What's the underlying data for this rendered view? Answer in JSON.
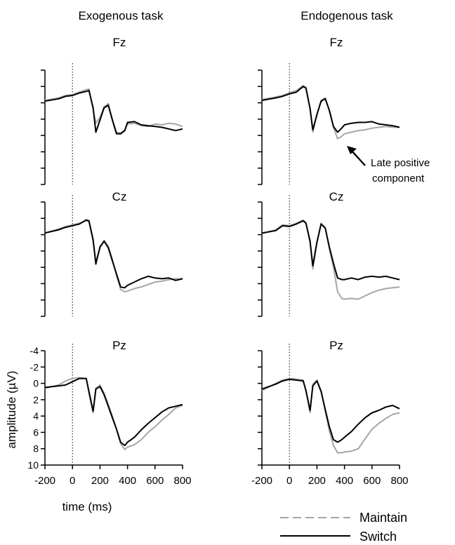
{
  "columns": [
    "Exogenous task",
    "Endogenous task"
  ],
  "legend": [
    {
      "label": "Maintain",
      "color": "#a6a6a6",
      "style": "dashed"
    },
    {
      "label": "Switch",
      "color": "#000000",
      "style": "solid"
    }
  ],
  "annotation": {
    "lines": [
      "Late positive",
      "component"
    ],
    "icon": "arrow-up-left-icon"
  },
  "axes": {
    "xlabel": "time (ms)",
    "ylabel": "amplitude (µV)",
    "xticks": [
      -200,
      0,
      200,
      400,
      600,
      800
    ],
    "yticks": [
      -4,
      -2,
      0,
      2,
      4,
      6,
      8,
      10
    ],
    "xlim": [
      -200,
      800
    ],
    "ylim": [
      -4,
      10
    ],
    "y_inverted": true
  },
  "chart_data": [
    {
      "type": "line",
      "panel": "Exogenous Fz",
      "title": "Fz",
      "task": "Exogenous task",
      "electrode": "Fz",
      "x": [
        -200,
        -100,
        -50,
        0,
        50,
        100,
        120,
        150,
        170,
        200,
        230,
        260,
        290,
        320,
        350,
        380,
        400,
        450,
        500,
        550,
        600,
        650,
        700,
        750,
        800
      ],
      "series": [
        {
          "name": "Maintain",
          "values": [
            -0.3,
            -0.6,
            -0.9,
            -1.0,
            -1.3,
            -1.6,
            -1.7,
            0.8,
            2.5,
            1.8,
            0.5,
            0.1,
            2.0,
            3.6,
            3.7,
            3.3,
            2.6,
            2.5,
            2.8,
            2.9,
            2.6,
            2.7,
            2.5,
            2.6,
            2.9
          ]
        },
        {
          "name": "Switch",
          "values": [
            -0.2,
            -0.5,
            -0.8,
            -0.9,
            -1.2,
            -1.4,
            -1.5,
            0.6,
            3.6,
            2.1,
            0.6,
            0.3,
            2.1,
            3.8,
            3.8,
            3.4,
            2.4,
            2.3,
            2.7,
            2.8,
            2.9,
            3.0,
            3.2,
            3.4,
            3.2
          ]
        }
      ]
    },
    {
      "type": "line",
      "panel": "Endogenous Fz",
      "title": "Fz",
      "task": "Endogenous task",
      "electrode": "Fz",
      "x": [
        -200,
        -100,
        -50,
        0,
        50,
        100,
        120,
        150,
        170,
        200,
        230,
        260,
        290,
        320,
        350,
        380,
        400,
        450,
        500,
        550,
        600,
        650,
        700,
        750,
        800
      ],
      "series": [
        {
          "name": "Maintain",
          "values": [
            -0.4,
            -0.7,
            -0.9,
            -1.2,
            -1.5,
            -2.1,
            -1.9,
            0.8,
            3.6,
            1.5,
            -0.3,
            -0.6,
            1.0,
            3.0,
            4.4,
            4.1,
            3.8,
            3.6,
            3.4,
            3.3,
            3.1,
            3.0,
            2.9,
            3.0,
            3.0
          ]
        },
        {
          "name": "Switch",
          "values": [
            -0.3,
            -0.6,
            -0.8,
            -1.1,
            -1.3,
            -2.0,
            -1.8,
            0.7,
            3.3,
            1.4,
            -0.2,
            -0.5,
            0.9,
            2.9,
            3.6,
            3.1,
            2.7,
            2.5,
            2.4,
            2.4,
            2.3,
            2.6,
            2.7,
            2.8,
            3.0
          ]
        }
      ]
    },
    {
      "type": "line",
      "panel": "Exogenous Cz",
      "title": "Cz",
      "task": "Exogenous task",
      "electrode": "Cz",
      "x": [
        -200,
        -100,
        -50,
        0,
        50,
        100,
        120,
        150,
        170,
        200,
        230,
        260,
        290,
        320,
        350,
        380,
        400,
        450,
        500,
        550,
        600,
        650,
        700,
        750,
        800
      ],
      "series": [
        {
          "name": "Maintain",
          "values": [
            -0.2,
            -0.7,
            -1.0,
            -1.2,
            -1.4,
            -1.7,
            -1.6,
            0.8,
            3.3,
            1.6,
            0.7,
            1.4,
            3.0,
            5.0,
            6.7,
            7.0,
            6.9,
            6.6,
            6.4,
            6.1,
            5.8,
            5.7,
            5.5,
            5.4,
            5.4
          ]
        },
        {
          "name": "Switch",
          "values": [
            -0.2,
            -0.6,
            -0.9,
            -1.1,
            -1.3,
            -1.8,
            -1.7,
            0.6,
            3.6,
            1.5,
            0.8,
            1.6,
            3.2,
            4.8,
            6.4,
            6.5,
            6.2,
            5.8,
            5.4,
            5.1,
            5.3,
            5.4,
            5.3,
            5.6,
            5.4
          ]
        }
      ]
    },
    {
      "type": "line",
      "panel": "Endogenous Cz",
      "title": "Cz",
      "task": "Endogenous task",
      "electrode": "Cz",
      "x": [
        -200,
        -100,
        -50,
        0,
        50,
        100,
        120,
        150,
        170,
        200,
        230,
        260,
        290,
        320,
        350,
        380,
        400,
        450,
        500,
        550,
        600,
        650,
        700,
        750,
        800
      ],
      "series": [
        {
          "name": "Maintain",
          "values": [
            -0.1,
            -0.6,
            -1.2,
            -1.1,
            -1.4,
            -1.8,
            -1.5,
            1.0,
            4.2,
            1.0,
            -1.4,
            -0.9,
            1.7,
            4.0,
            7.0,
            7.8,
            7.9,
            7.8,
            7.9,
            7.5,
            7.1,
            6.8,
            6.6,
            6.5,
            6.4
          ]
        },
        {
          "name": "Switch",
          "values": [
            -0.2,
            -0.5,
            -1.1,
            -1.0,
            -1.3,
            -1.7,
            -1.4,
            0.8,
            3.8,
            0.9,
            -1.3,
            -0.8,
            1.5,
            3.5,
            5.3,
            5.5,
            5.5,
            5.3,
            5.5,
            5.2,
            5.1,
            5.2,
            5.1,
            5.3,
            5.5
          ]
        }
      ]
    },
    {
      "type": "line",
      "panel": "Exogenous Pz",
      "title": "Pz",
      "task": "Exogenous task",
      "electrode": "Pz",
      "x": [
        -200,
        -100,
        -50,
        0,
        50,
        100,
        120,
        150,
        170,
        200,
        230,
        260,
        290,
        320,
        350,
        380,
        400,
        450,
        500,
        550,
        600,
        650,
        700,
        750,
        800
      ],
      "series": [
        {
          "name": "Maintain",
          "values": [
            0.6,
            0.2,
            -0.3,
            -0.6,
            -0.7,
            -0.6,
            1.2,
            3.6,
            0.6,
            0.2,
            1.2,
            2.6,
            4.0,
            5.6,
            7.4,
            8.1,
            7.8,
            7.5,
            6.9,
            6.0,
            5.3,
            4.5,
            3.8,
            3.0,
            2.7
          ]
        },
        {
          "name": "Switch",
          "values": [
            0.5,
            0.3,
            0.2,
            -0.2,
            -0.6,
            -0.6,
            1.0,
            3.4,
            0.7,
            0.4,
            1.4,
            2.8,
            4.2,
            5.6,
            7.2,
            7.6,
            7.2,
            6.6,
            5.7,
            4.9,
            4.2,
            3.5,
            3.0,
            2.8,
            2.6
          ]
        }
      ]
    },
    {
      "type": "line",
      "panel": "Endogenous Pz",
      "title": "Pz",
      "task": "Endogenous task",
      "electrode": "Pz",
      "x": [
        -200,
        -100,
        -50,
        0,
        50,
        100,
        120,
        150,
        170,
        200,
        230,
        260,
        290,
        320,
        350,
        380,
        400,
        450,
        500,
        550,
        600,
        650,
        700,
        750,
        800
      ],
      "series": [
        {
          "name": "Maintain",
          "values": [
            0.9,
            0.0,
            -0.4,
            -0.6,
            -0.5,
            -0.4,
            0.8,
            3.6,
            0.1,
            -0.4,
            0.9,
            3.4,
            5.8,
            7.6,
            8.5,
            8.5,
            8.4,
            8.3,
            8.0,
            6.8,
            5.6,
            4.9,
            4.3,
            3.8,
            3.6
          ]
        },
        {
          "name": "Switch",
          "values": [
            0.7,
            0.1,
            -0.3,
            -0.5,
            -0.4,
            -0.3,
            0.9,
            3.3,
            0.3,
            -0.3,
            1.0,
            3.2,
            5.3,
            6.9,
            7.2,
            6.9,
            6.6,
            5.9,
            5.0,
            4.2,
            3.6,
            3.3,
            2.9,
            2.7,
            3.1
          ]
        }
      ]
    }
  ]
}
